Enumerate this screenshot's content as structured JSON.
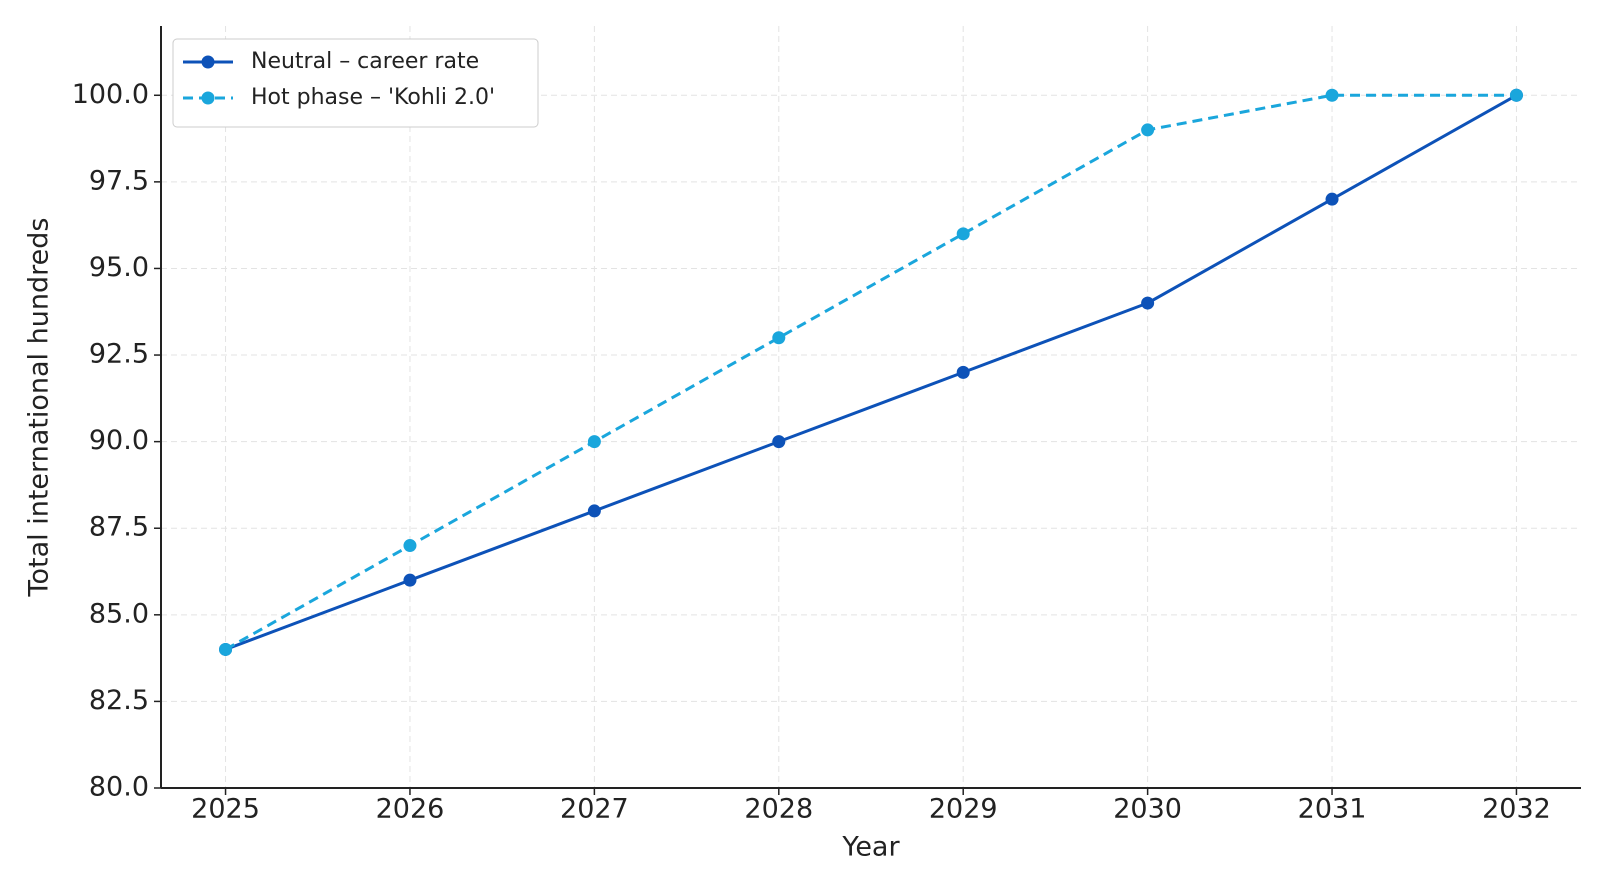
{
  "chart_data": {
    "type": "line",
    "x_label": "Year",
    "y_label": "Total international hundreds",
    "x": [
      2025,
      2026,
      2027,
      2028,
      2029,
      2030,
      2031,
      2032
    ],
    "series": [
      {
        "name": "Neutral – career rate",
        "color": "#0d52b8",
        "linestyle": "solid",
        "values": [
          84,
          86,
          88,
          90,
          92,
          94,
          97,
          100
        ]
      },
      {
        "name": "Hot phase – 'Kohli 2.0'",
        "color": "#1aa6dc",
        "linestyle": "dashed",
        "values": [
          84,
          87,
          90,
          93,
          96,
          99,
          100,
          100
        ]
      }
    ],
    "xlim": [
      2024.65,
      2032.35
    ],
    "ylim": [
      80,
      102
    ],
    "xticks": [
      2025,
      2026,
      2027,
      2028,
      2029,
      2030,
      2031,
      2032
    ],
    "yticks": [
      {
        "value": 80,
        "label": "80.0"
      },
      {
        "value": 82.5,
        "label": "82.5"
      },
      {
        "value": 85,
        "label": "85.0"
      },
      {
        "value": 87.5,
        "label": "87.5"
      },
      {
        "value": 90,
        "label": "90.0"
      },
      {
        "value": 92.5,
        "label": "92.5"
      },
      {
        "value": 95,
        "label": "95.0"
      },
      {
        "value": 97.5,
        "label": "97.5"
      },
      {
        "value": 100,
        "label": "100.0"
      }
    ],
    "grid": true,
    "legend": "upper-left"
  }
}
